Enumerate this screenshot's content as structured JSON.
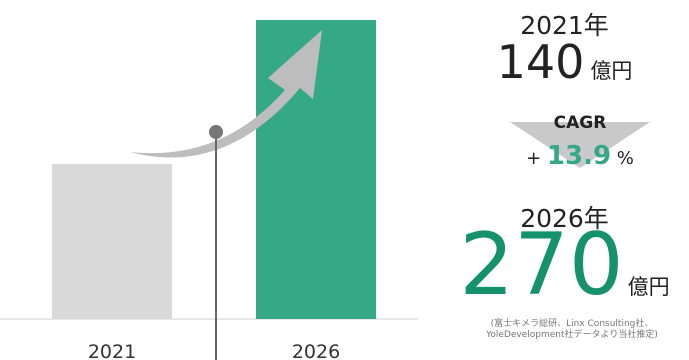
{
  "chart_data": {
    "type": "bar",
    "categories": [
      "2021",
      "2026"
    ],
    "values": [
      140,
      270
    ],
    "unit": "億円",
    "ylim": [
      0,
      270
    ],
    "colors": [
      "#d9d9d9",
      "#35a886"
    ],
    "cagr": {
      "label": "CAGR",
      "prefix": "+",
      "value": "13.9",
      "unit": "%"
    }
  },
  "summary": {
    "start_year_label": "2021年",
    "start_value": "140",
    "end_year_label": "2026年",
    "end_value": "270",
    "unit": "億円"
  },
  "source_note": [
    "(富士キメラ総研、Linx Consulting社、",
    "YoleDevelopment社データより当社推定)"
  ],
  "colors": {
    "accent": "#35a886",
    "accent_dark": "#16926a",
    "bar_gray": "#d9d9d9",
    "arrow_gray": "#bdbdbd"
  }
}
